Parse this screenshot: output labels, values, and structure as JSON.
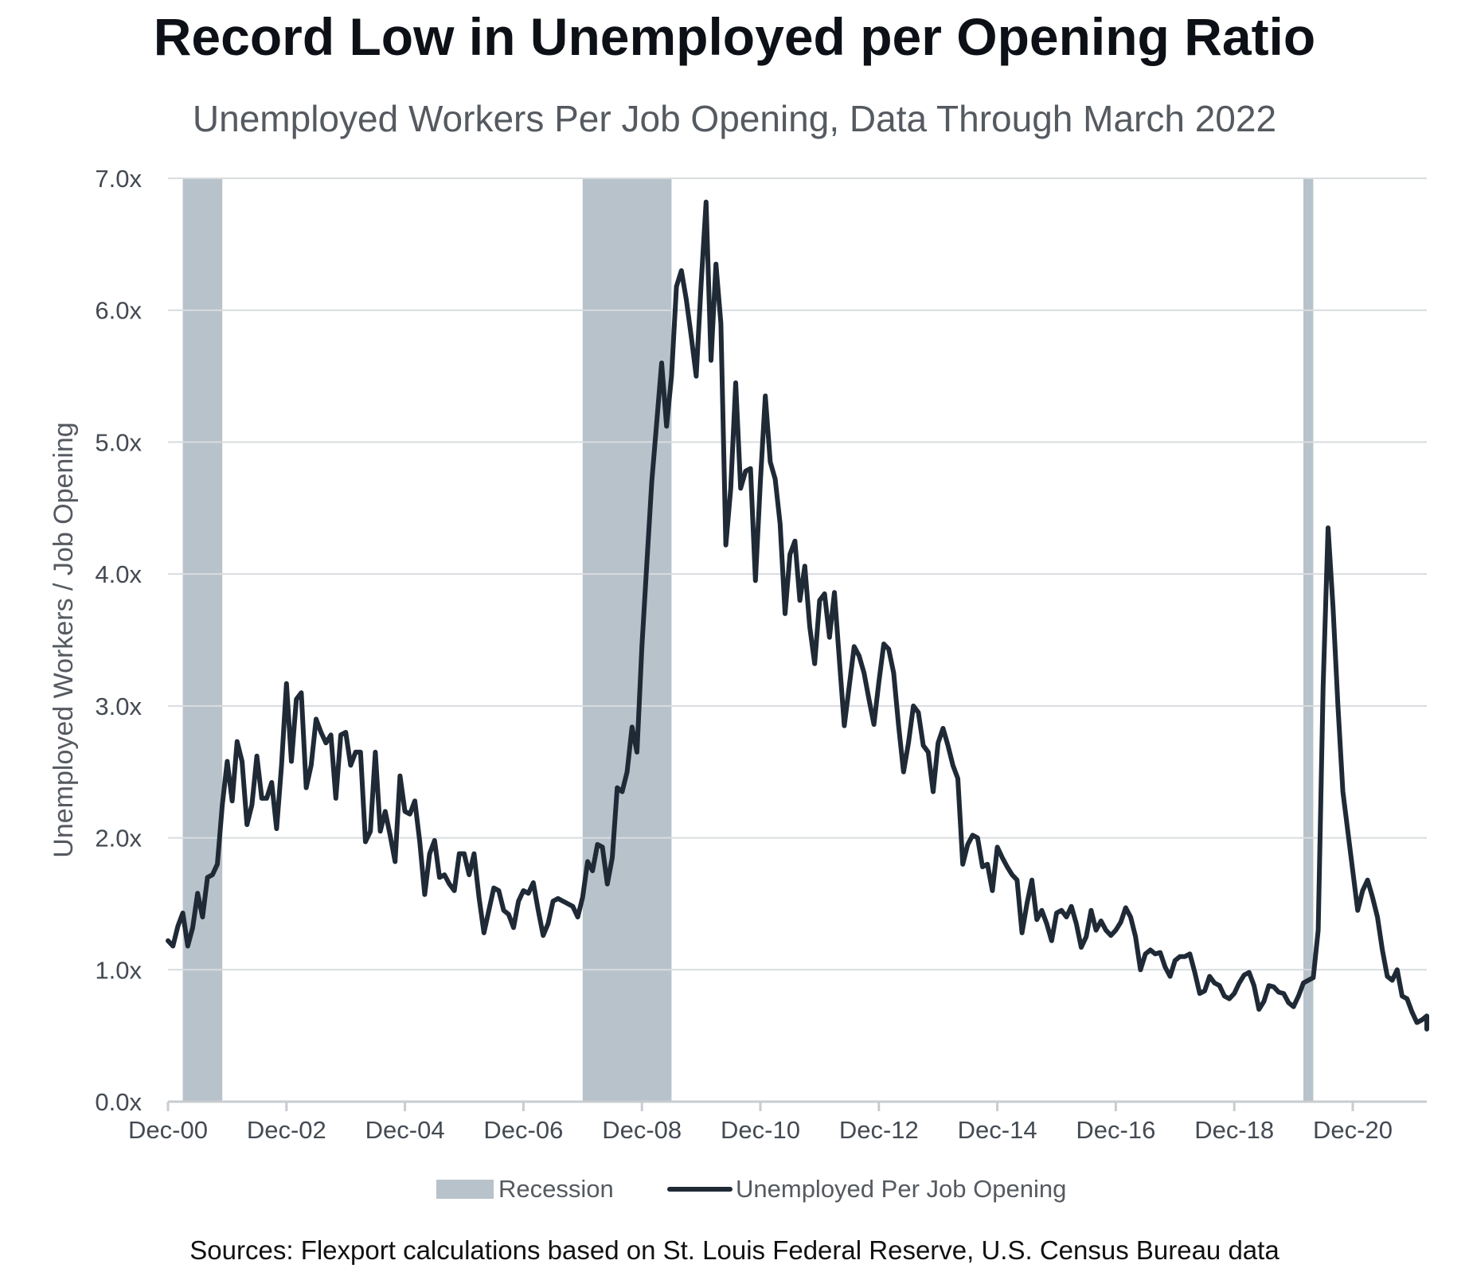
{
  "chart_data": {
    "type": "line",
    "title": "Record Low in Unemployed per Opening Ratio",
    "subtitle": "Unemployed Workers Per Job Opening, Data Through March 2022",
    "ylabel": "Unemployed Workers / Job Opening",
    "xlabel": "",
    "ylim": [
      0,
      7
    ],
    "yticks": [
      "0.0x",
      "1.0x",
      "2.0x",
      "3.0x",
      "4.0x",
      "5.0x",
      "6.0x",
      "7.0x"
    ],
    "xticks": [
      "Dec-00",
      "Dec-02",
      "Dec-04",
      "Dec-06",
      "Dec-08",
      "Dec-10",
      "Dec-12",
      "Dec-14",
      "Dec-16",
      "Dec-18",
      "Dec-20"
    ],
    "xlim": [
      "2000-12",
      "2022-03"
    ],
    "grid": true,
    "legend_position": "bottom",
    "recessions": [
      {
        "start": "2001-03",
        "end": "2001-11"
      },
      {
        "start": "2007-12",
        "end": "2009-06"
      },
      {
        "start": "2020-02",
        "end": "2020-04"
      }
    ],
    "series": [
      {
        "name": "Unemployed Per Job Opening",
        "points": [
          [
            "2000-12",
            1.22
          ],
          [
            "2001-01",
            1.18
          ],
          [
            "2001-02",
            1.33
          ],
          [
            "2001-03",
            1.43
          ],
          [
            "2001-04",
            1.18
          ],
          [
            "2001-05",
            1.32
          ],
          [
            "2001-06",
            1.58
          ],
          [
            "2001-07",
            1.4
          ],
          [
            "2001-08",
            1.7
          ],
          [
            "2001-09",
            1.72
          ],
          [
            "2001-10",
            1.8
          ],
          [
            "2001-11",
            2.25
          ],
          [
            "2001-12",
            2.58
          ],
          [
            "2002-01",
            2.28
          ],
          [
            "2002-02",
            2.73
          ],
          [
            "2002-03",
            2.58
          ],
          [
            "2002-04",
            2.1
          ],
          [
            "2002-05",
            2.25
          ],
          [
            "2002-06",
            2.62
          ],
          [
            "2002-07",
            2.3
          ],
          [
            "2002-08",
            2.3
          ],
          [
            "2002-09",
            2.42
          ],
          [
            "2002-10",
            2.07
          ],
          [
            "2002-11",
            2.55
          ],
          [
            "2002-12",
            3.17
          ],
          [
            "2003-01",
            2.58
          ],
          [
            "2003-02",
            3.05
          ],
          [
            "2003-03",
            3.1
          ],
          [
            "2003-04",
            2.38
          ],
          [
            "2003-05",
            2.55
          ],
          [
            "2003-06",
            2.9
          ],
          [
            "2003-07",
            2.8
          ],
          [
            "2003-08",
            2.72
          ],
          [
            "2003-09",
            2.78
          ],
          [
            "2003-10",
            2.3
          ],
          [
            "2003-11",
            2.78
          ],
          [
            "2003-12",
            2.8
          ],
          [
            "2004-01",
            2.55
          ],
          [
            "2004-02",
            2.65
          ],
          [
            "2004-03",
            2.65
          ],
          [
            "2004-04",
            1.97
          ],
          [
            "2004-05",
            2.05
          ],
          [
            "2004-06",
            2.65
          ],
          [
            "2004-07",
            2.05
          ],
          [
            "2004-08",
            2.2
          ],
          [
            "2004-09",
            2.02
          ],
          [
            "2004-10",
            1.82
          ],
          [
            "2004-11",
            2.47
          ],
          [
            "2004-12",
            2.2
          ],
          [
            "2005-01",
            2.18
          ],
          [
            "2005-02",
            2.28
          ],
          [
            "2005-03",
            1.97
          ],
          [
            "2005-04",
            1.57
          ],
          [
            "2005-05",
            1.88
          ],
          [
            "2005-06",
            1.98
          ],
          [
            "2005-07",
            1.7
          ],
          [
            "2005-08",
            1.72
          ],
          [
            "2005-09",
            1.65
          ],
          [
            "2005-10",
            1.6
          ],
          [
            "2005-11",
            1.88
          ],
          [
            "2005-12",
            1.88
          ],
          [
            "2006-01",
            1.72
          ],
          [
            "2006-02",
            1.88
          ],
          [
            "2006-03",
            1.55
          ],
          [
            "2006-04",
            1.28
          ],
          [
            "2006-05",
            1.45
          ],
          [
            "2006-06",
            1.62
          ],
          [
            "2006-07",
            1.6
          ],
          [
            "2006-08",
            1.45
          ],
          [
            "2006-09",
            1.42
          ],
          [
            "2006-10",
            1.32
          ],
          [
            "2006-11",
            1.52
          ],
          [
            "2006-12",
            1.6
          ],
          [
            "2007-01",
            1.58
          ],
          [
            "2007-02",
            1.66
          ],
          [
            "2007-03",
            1.45
          ],
          [
            "2007-04",
            1.26
          ],
          [
            "2007-05",
            1.35
          ],
          [
            "2007-06",
            1.52
          ],
          [
            "2007-07",
            1.54
          ],
          [
            "2007-08",
            1.52
          ],
          [
            "2007-09",
            1.5
          ],
          [
            "2007-10",
            1.48
          ],
          [
            "2007-11",
            1.4
          ],
          [
            "2007-12",
            1.55
          ],
          [
            "2008-01",
            1.82
          ],
          [
            "2008-02",
            1.75
          ],
          [
            "2008-03",
            1.95
          ],
          [
            "2008-04",
            1.93
          ],
          [
            "2008-05",
            1.65
          ],
          [
            "2008-06",
            1.85
          ],
          [
            "2008-07",
            2.38
          ],
          [
            "2008-08",
            2.35
          ],
          [
            "2008-09",
            2.5
          ],
          [
            "2008-10",
            2.84
          ],
          [
            "2008-11",
            2.65
          ],
          [
            "2008-12",
            3.45
          ],
          [
            "2009-01",
            4.08
          ],
          [
            "2009-02",
            4.7
          ],
          [
            "2009-03",
            5.15
          ],
          [
            "2009-04",
            5.6
          ],
          [
            "2009-05",
            5.12
          ],
          [
            "2009-06",
            5.5
          ],
          [
            "2009-07",
            6.18
          ],
          [
            "2009-08",
            6.3
          ],
          [
            "2009-09",
            6.08
          ],
          [
            "2009-10",
            5.8
          ],
          [
            "2009-11",
            5.5
          ],
          [
            "2009-12",
            6.2
          ],
          [
            "2010-01",
            6.82
          ],
          [
            "2010-02",
            5.62
          ],
          [
            "2010-03",
            6.35
          ],
          [
            "2010-04",
            5.9
          ],
          [
            "2010-05",
            4.22
          ],
          [
            "2010-06",
            4.65
          ],
          [
            "2010-07",
            5.45
          ],
          [
            "2010-08",
            4.65
          ],
          [
            "2010-09",
            4.78
          ],
          [
            "2010-10",
            4.8
          ],
          [
            "2010-11",
            3.95
          ],
          [
            "2010-12",
            4.7
          ],
          [
            "2011-01",
            5.35
          ],
          [
            "2011-02",
            4.85
          ],
          [
            "2011-03",
            4.72
          ],
          [
            "2011-04",
            4.38
          ],
          [
            "2011-05",
            3.7
          ],
          [
            "2011-06",
            4.15
          ],
          [
            "2011-07",
            4.25
          ],
          [
            "2011-08",
            3.8
          ],
          [
            "2011-09",
            4.06
          ],
          [
            "2011-10",
            3.6
          ],
          [
            "2011-11",
            3.32
          ],
          [
            "2011-12",
            3.8
          ],
          [
            "2012-01",
            3.85
          ],
          [
            "2012-02",
            3.52
          ],
          [
            "2012-03",
            3.86
          ],
          [
            "2012-04",
            3.35
          ],
          [
            "2012-05",
            2.85
          ],
          [
            "2012-06",
            3.15
          ],
          [
            "2012-07",
            3.45
          ],
          [
            "2012-08",
            3.38
          ],
          [
            "2012-09",
            3.25
          ],
          [
            "2012-10",
            3.05
          ],
          [
            "2012-11",
            2.86
          ],
          [
            "2012-12",
            3.18
          ],
          [
            "2013-01",
            3.47
          ],
          [
            "2013-02",
            3.43
          ],
          [
            "2013-03",
            3.25
          ],
          [
            "2013-04",
            2.85
          ],
          [
            "2013-05",
            2.5
          ],
          [
            "2013-06",
            2.72
          ],
          [
            "2013-07",
            3.0
          ],
          [
            "2013-08",
            2.95
          ],
          [
            "2013-09",
            2.7
          ],
          [
            "2013-10",
            2.65
          ],
          [
            "2013-11",
            2.35
          ],
          [
            "2013-12",
            2.72
          ],
          [
            "2014-01",
            2.83
          ],
          [
            "2014-02",
            2.7
          ],
          [
            "2014-03",
            2.55
          ],
          [
            "2014-04",
            2.45
          ],
          [
            "2014-05",
            1.8
          ],
          [
            "2014-06",
            1.95
          ],
          [
            "2014-07",
            2.02
          ],
          [
            "2014-08",
            2.0
          ],
          [
            "2014-09",
            1.78
          ],
          [
            "2014-10",
            1.8
          ],
          [
            "2014-11",
            1.6
          ],
          [
            "2014-12",
            1.93
          ],
          [
            "2015-01",
            1.85
          ],
          [
            "2015-02",
            1.78
          ],
          [
            "2015-03",
            1.72
          ],
          [
            "2015-04",
            1.68
          ],
          [
            "2015-05",
            1.28
          ],
          [
            "2015-06",
            1.5
          ],
          [
            "2015-07",
            1.68
          ],
          [
            "2015-08",
            1.38
          ],
          [
            "2015-09",
            1.45
          ],
          [
            "2015-10",
            1.35
          ],
          [
            "2015-11",
            1.22
          ],
          [
            "2015-12",
            1.43
          ],
          [
            "2016-01",
            1.45
          ],
          [
            "2016-02",
            1.4
          ],
          [
            "2016-03",
            1.48
          ],
          [
            "2016-04",
            1.35
          ],
          [
            "2016-05",
            1.17
          ],
          [
            "2016-06",
            1.25
          ],
          [
            "2016-07",
            1.45
          ],
          [
            "2016-08",
            1.3
          ],
          [
            "2016-09",
            1.37
          ],
          [
            "2016-10",
            1.3
          ],
          [
            "2016-11",
            1.26
          ],
          [
            "2016-12",
            1.3
          ],
          [
            "2017-01",
            1.36
          ],
          [
            "2017-02",
            1.47
          ],
          [
            "2017-03",
            1.4
          ],
          [
            "2017-04",
            1.25
          ],
          [
            "2017-05",
            1.0
          ],
          [
            "2017-06",
            1.12
          ],
          [
            "2017-07",
            1.15
          ],
          [
            "2017-08",
            1.12
          ],
          [
            "2017-09",
            1.13
          ],
          [
            "2017-10",
            1.02
          ],
          [
            "2017-11",
            0.95
          ],
          [
            "2017-12",
            1.07
          ],
          [
            "2018-01",
            1.1
          ],
          [
            "2018-02",
            1.1
          ],
          [
            "2018-03",
            1.12
          ],
          [
            "2018-04",
            0.98
          ],
          [
            "2018-05",
            0.82
          ],
          [
            "2018-06",
            0.84
          ],
          [
            "2018-07",
            0.95
          ],
          [
            "2018-08",
            0.9
          ],
          [
            "2018-09",
            0.88
          ],
          [
            "2018-10",
            0.8
          ],
          [
            "2018-11",
            0.78
          ],
          [
            "2018-12",
            0.82
          ],
          [
            "2019-01",
            0.9
          ],
          [
            "2019-02",
            0.96
          ],
          [
            "2019-03",
            0.98
          ],
          [
            "2019-04",
            0.88
          ],
          [
            "2019-05",
            0.7
          ],
          [
            "2019-06",
            0.76
          ],
          [
            "2019-07",
            0.88
          ],
          [
            "2019-08",
            0.87
          ],
          [
            "2019-09",
            0.83
          ],
          [
            "2019-10",
            0.82
          ],
          [
            "2019-11",
            0.75
          ],
          [
            "2019-12",
            0.72
          ],
          [
            "2020-01",
            0.8
          ],
          [
            "2020-02",
            0.9
          ],
          [
            "2020-03",
            0.92
          ],
          [
            "2020-04",
            0.94
          ],
          [
            "2020-05",
            1.3
          ],
          [
            "2020-06",
            3.15
          ],
          [
            "2020-07",
            4.35
          ],
          [
            "2020-08",
            3.75
          ],
          [
            "2020-09",
            3.0
          ],
          [
            "2020-10",
            2.35
          ],
          [
            "2020-11",
            2.05
          ],
          [
            "2020-12",
            1.75
          ],
          [
            "2021-01",
            1.45
          ],
          [
            "2021-02",
            1.6
          ],
          [
            "2021-03",
            1.68
          ],
          [
            "2021-04",
            1.55
          ],
          [
            "2021-05",
            1.4
          ],
          [
            "2021-06",
            1.15
          ],
          [
            "2021-07",
            0.95
          ],
          [
            "2021-08",
            0.92
          ],
          [
            "2021-09",
            1.0
          ],
          [
            "2021-10",
            0.8
          ],
          [
            "2021-11",
            0.78
          ],
          [
            "2021-12",
            0.68
          ],
          [
            "2022-01",
            0.6
          ],
          [
            "2022-02",
            0.62
          ],
          [
            "2022-03",
            0.65
          ],
          [
            "2022-04",
            0.63
          ],
          [
            "2022-05",
            0.55
          ]
        ]
      }
    ]
  },
  "legend": {
    "recession_label": "Recession",
    "series_label": "Unemployed Per Job Opening"
  },
  "source_note": "Sources: Flexport calculations based on St. Louis Federal Reserve, U.S. Census Bureau data",
  "colors": {
    "line": "#1f2a36",
    "recession": "#b8c2ca",
    "grid": "#d9dcdf",
    "axis": "#c8ccd0"
  }
}
